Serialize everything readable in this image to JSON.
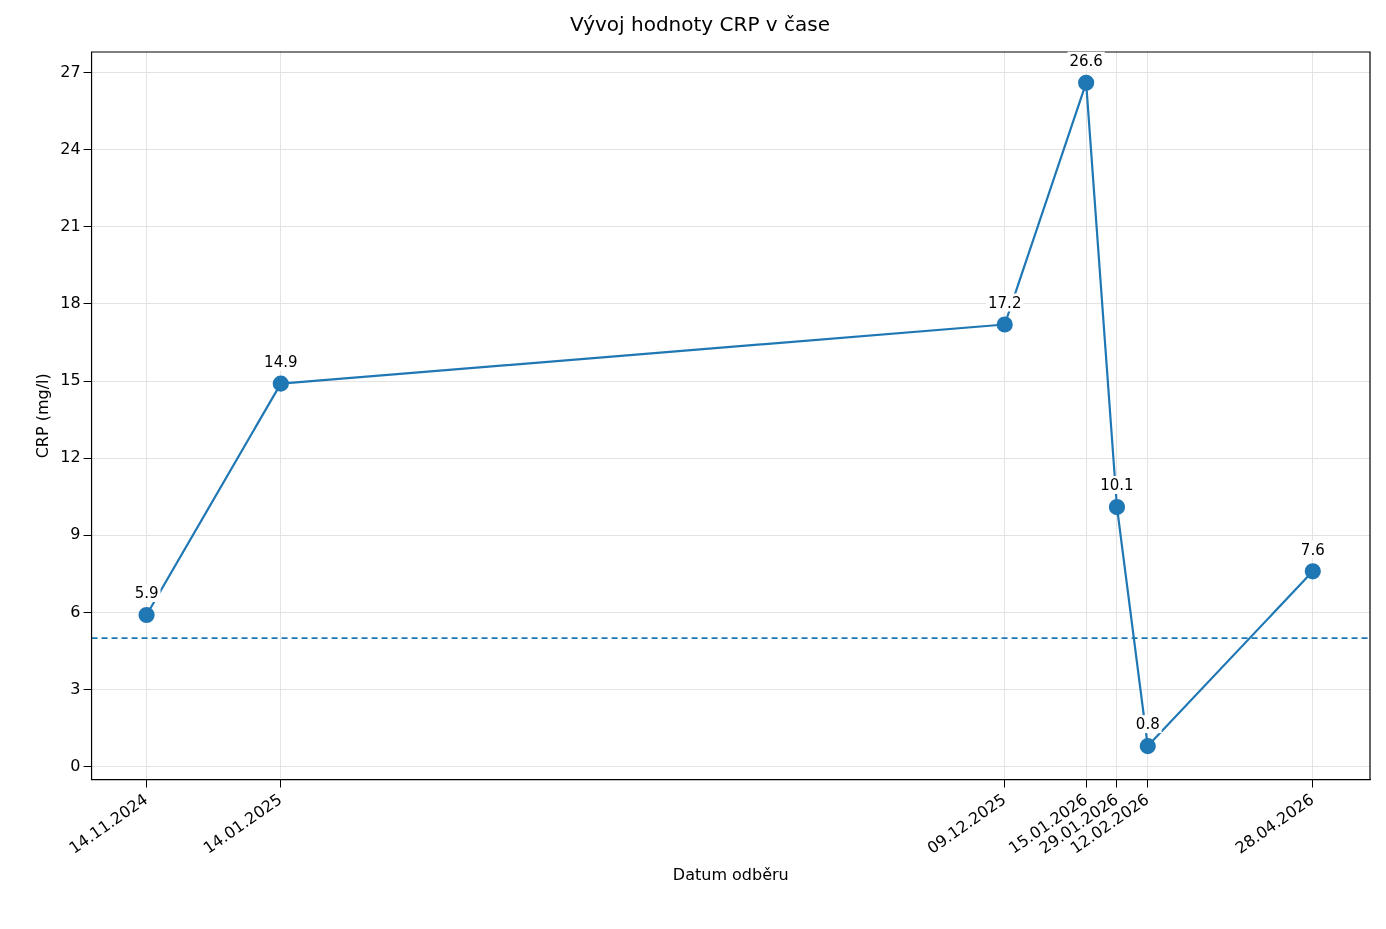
{
  "chart_data": {
    "type": "line",
    "title": "Vývoj hodnoty CRP v čase",
    "xlabel": "Datum odběru",
    "ylabel": "CRP (mg/l)",
    "x": [
      "2024-11-14",
      "2025-01-14",
      "2025-12-09",
      "2026-01-15",
      "2026-01-29",
      "2026-02-12",
      "2026-04-28"
    ],
    "series": [
      {
        "color": "#1f77b4",
        "values": [
          5.9,
          14.9,
          17.2,
          26.6,
          10.1,
          0.8,
          7.6
        ]
      }
    ],
    "xlim": [
      "2024-10-20",
      "2026-05-24"
    ],
    "xticks": [
      {
        "value": "2024-11-14",
        "label": "14.11.2024"
      },
      {
        "value": "2025-01-14",
        "label": "14.01.2025"
      },
      {
        "value": "2025-12-09",
        "label": "09.12.2025"
      },
      {
        "value": "2026-01-15",
        "label": "15.01.2026"
      },
      {
        "value": "2026-01-29",
        "label": "29.01.2026"
      },
      {
        "value": "2026-02-12",
        "label": "12.02.2026"
      },
      {
        "value": "2026-04-28",
        "label": "28.04.2026"
      }
    ],
    "ylim": [
      -0.5,
      27.8
    ],
    "yticks": [
      0,
      3,
      6,
      9,
      12,
      15,
      18,
      21,
      24,
      27
    ],
    "ref_lines": [
      {
        "axis": "y",
        "value": 5,
        "color": "#1f77b4",
        "line_style": "dashed"
      }
    ],
    "data_labels": true,
    "grid": true,
    "legend": false,
    "marker": "circle",
    "line_style": "solid"
  }
}
